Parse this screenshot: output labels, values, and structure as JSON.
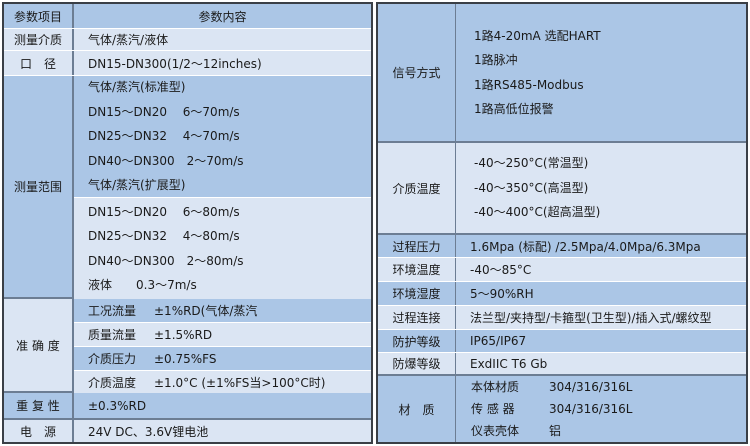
{
  "left": {
    "header": {
      "item": "参数项目",
      "content": "参数内容"
    },
    "medium": {
      "label": "测量介质",
      "value": "气体/蒸汽/液体"
    },
    "diameter": {
      "label": "口　径",
      "value": "DN15-DN300(1/2～12inches)"
    },
    "range": {
      "label": "测量范围",
      "standard": [
        "气体/蒸汽(标准型)",
        "DN15～DN20　 6～70m/s",
        "DN25～DN32　 4～70m/s",
        "DN40～DN300　2～70m/s",
        "气体/蒸汽(扩展型)"
      ],
      "extended": [
        "DN15～DN20　 6～80m/s",
        "DN25～DN32　 4～80m/s",
        "DN40～DN300　2～80m/s",
        "液体　　0.3～7m/s"
      ]
    },
    "accuracy": {
      "label": "准 确 度",
      "items": [
        {
          "name": "工况流量",
          "value": "±1%RD(气体/蒸汽"
        },
        {
          "name": "质量流量",
          "value": "±1.5%RD"
        },
        {
          "name": "介质压力",
          "value": "±0.75%FS"
        },
        {
          "name": "介质温度",
          "value": "±1.0°C (±1%FS当>100°C时)"
        }
      ]
    },
    "repeat": {
      "label": "重 复 性",
      "value": "±0.3%RD"
    },
    "power": {
      "label": "电　源",
      "value": "24V DC、3.6V锂电池"
    }
  },
  "right": {
    "signal": {
      "label": "信号方式",
      "lines": [
        "1路4-20mA 选配HART",
        "1路脉冲",
        "1路RS485-Modbus",
        "1路高低位报警"
      ]
    },
    "medium_temp": {
      "label": "介质温度",
      "lines": [
        "-40～250°C(常温型)",
        "-40～350°C(高温型)",
        "-40～400°C(超高温型)"
      ]
    },
    "pressure": {
      "label": "过程压力",
      "value": "1.6Mpa (标配) /2.5Mpa/4.0Mpa/6.3Mpa"
    },
    "env_temp": {
      "label": "环境温度",
      "value": "-40～85°C"
    },
    "env_hum": {
      "label": "环境湿度",
      "value": "5～90%RH"
    },
    "connection": {
      "label": "过程连接",
      "value": "法兰型/夹持型/卡箍型(卫生型)/插入式/螺纹型"
    },
    "protection": {
      "label": "防护等级",
      "value": "IP65/IP67"
    },
    "explosion": {
      "label": "防爆等级",
      "value": "ExdIIC T6 Gb"
    },
    "material": {
      "label": "材　质",
      "items": [
        {
          "name": "本体材质",
          "value": "304/316/316L"
        },
        {
          "name": "传 感 器",
          "value": "304/316/316L"
        },
        {
          "name": "仪表壳体",
          "value": "铝"
        }
      ]
    }
  }
}
